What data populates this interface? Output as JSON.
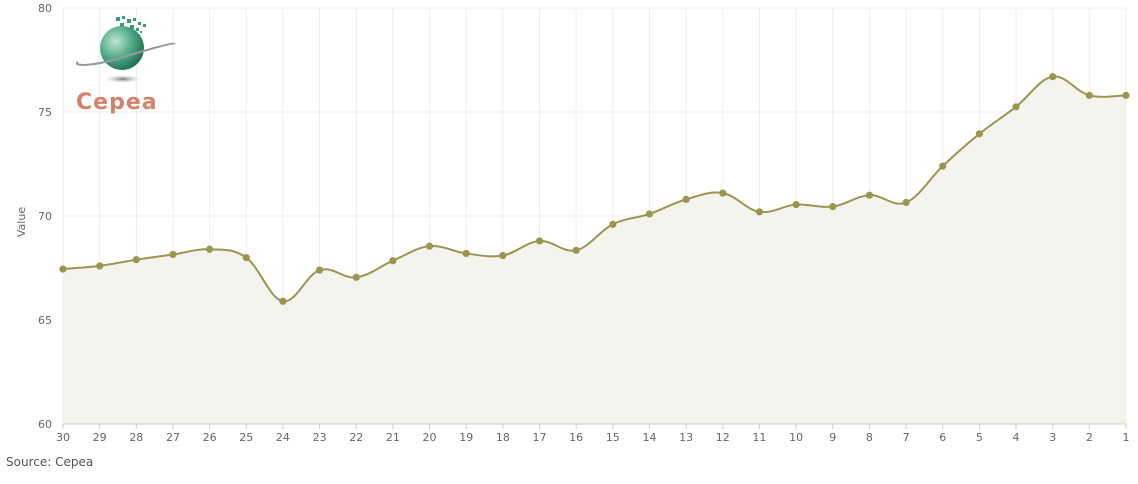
{
  "source_text": "Source: Cepea",
  "logo": {
    "name": "cepea-logo",
    "text": "Cepea"
  },
  "colors": {
    "line": "#9a9651",
    "area": "#f4f4ee",
    "grid": "#eeeeee",
    "axis": "#cccccc"
  },
  "chart_data": {
    "type": "area",
    "title": "",
    "xlabel": "",
    "ylabel": "Value",
    "ylim": [
      60,
      80
    ],
    "yticks": [
      60,
      65,
      70,
      75,
      80
    ],
    "grid": true,
    "categories": [
      "30",
      "29",
      "28",
      "27",
      "26",
      "25",
      "24",
      "23",
      "22",
      "21",
      "20",
      "19",
      "18",
      "17",
      "16",
      "15",
      "14",
      "13",
      "12",
      "11",
      "10",
      "9",
      "8",
      "7",
      "6",
      "5",
      "4",
      "3",
      "2",
      "1"
    ],
    "series": [
      {
        "values": [
          67.45,
          67.6,
          67.9,
          68.15,
          68.4,
          68.0,
          65.9,
          67.4,
          67.05,
          67.85,
          68.55,
          68.2,
          68.1,
          68.8,
          68.35,
          69.6,
          70.1,
          70.8,
          71.1,
          70.2,
          70.55,
          70.45,
          71.0,
          70.65,
          72.4,
          73.95,
          75.25,
          76.7,
          75.8,
          75.8
        ]
      }
    ]
  }
}
